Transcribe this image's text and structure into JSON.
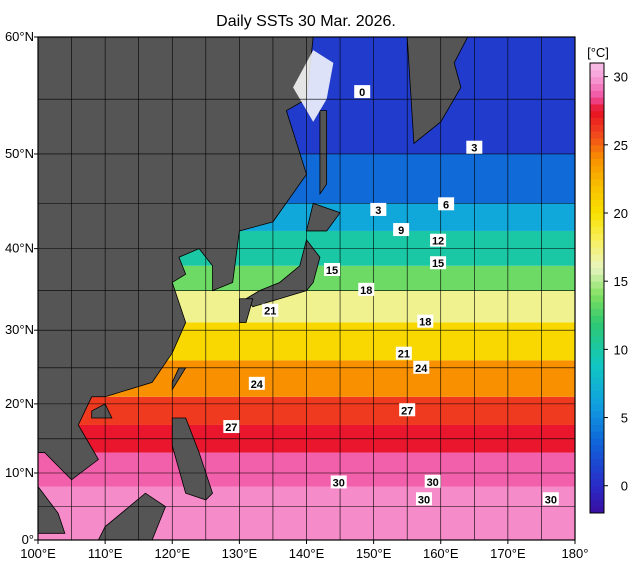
{
  "title": "Daily SSTs 30 Mar. 2026.",
  "map": {
    "lon_range": [
      100,
      180
    ],
    "lat_range": [
      0,
      60
    ],
    "grid_step": 5,
    "lon_ticks": [
      {
        "value": 100,
        "label": "100°E"
      },
      {
        "value": 110,
        "label": "110°E"
      },
      {
        "value": 120,
        "label": "120°E"
      },
      {
        "value": 130,
        "label": "130°E"
      },
      {
        "value": 140,
        "label": "140°E"
      },
      {
        "value": 150,
        "label": "150°E"
      },
      {
        "value": 160,
        "label": "160°E"
      },
      {
        "value": 170,
        "label": "170°E"
      },
      {
        "value": 180,
        "label": "180°"
      }
    ],
    "lat_ticks": [
      {
        "value": 0,
        "label": "0°"
      },
      {
        "value": 10,
        "label": "10°N"
      },
      {
        "value": 20,
        "label": "20°N"
      },
      {
        "value": 30,
        "label": "30°N"
      },
      {
        "value": 40,
        "label": "40°N"
      },
      {
        "value": 50,
        "label": "50°N"
      },
      {
        "value": 60,
        "label": "60°N"
      }
    ]
  },
  "colorbar": {
    "unit": "[°C]",
    "range": [
      -2,
      31
    ],
    "ticks": [
      0,
      5,
      10,
      15,
      20,
      25,
      30
    ]
  },
  "sst_bands": [
    {
      "lat_min": 0,
      "lat_max": 8,
      "sst": 29.6
    },
    {
      "lat_min": 8,
      "lat_max": 13,
      "sst": 28.8
    },
    {
      "lat_min": 13,
      "lat_max": 17,
      "sst": 27.6
    },
    {
      "lat_min": 17,
      "lat_max": 21,
      "sst": 26.2
    },
    {
      "lat_min": 21,
      "lat_max": 26,
      "sst": 24
    },
    {
      "lat_min": 26,
      "lat_max": 31,
      "sst": 20.5
    },
    {
      "lat_min": 31,
      "lat_max": 35,
      "sst": 17
    },
    {
      "lat_min": 35,
      "lat_max": 38,
      "sst": 13.5
    },
    {
      "lat_min": 38,
      "lat_max": 42,
      "sst": 10
    },
    {
      "lat_min": 42,
      "lat_max": 45,
      "sst": 6.5
    },
    {
      "lat_min": 45,
      "lat_max": 50,
      "sst": 3.5
    },
    {
      "lat_min": 50,
      "lat_max": 60,
      "sst": 1
    }
  ],
  "contour_labels": [
    {
      "value": 0,
      "lon": 148.3,
      "lat": 55.6
    },
    {
      "value": 3,
      "lon": 165,
      "lat": 50.6
    },
    {
      "value": 3,
      "lon": 150.7,
      "lat": 44.3
    },
    {
      "value": 6,
      "lon": 160.8,
      "lat": 44.9
    },
    {
      "value": 9,
      "lon": 154.1,
      "lat": 42.1
    },
    {
      "value": 12,
      "lon": 159.6,
      "lat": 40.9
    },
    {
      "value": 15,
      "lon": 143.8,
      "lat": 37.5
    },
    {
      "value": 15,
      "lon": 159.6,
      "lat": 38.3
    },
    {
      "value": 18,
      "lon": 148.9,
      "lat": 35.1
    },
    {
      "value": 18,
      "lon": 157.7,
      "lat": 31.1
    },
    {
      "value": 21,
      "lon": 134.6,
      "lat": 32.5
    },
    {
      "value": 21,
      "lon": 154.5,
      "lat": 26.9
    },
    {
      "value": 24,
      "lon": 157.1,
      "lat": 25
    },
    {
      "value": 24,
      "lon": 132.6,
      "lat": 22.8
    },
    {
      "value": 27,
      "lon": 155,
      "lat": 19.1
    },
    {
      "value": 27,
      "lon": 128.8,
      "lat": 16.7
    },
    {
      "value": 30,
      "lon": 144.8,
      "lat": 8.6
    },
    {
      "value": 30,
      "lon": 158.8,
      "lat": 8.7
    },
    {
      "value": 30,
      "lon": 157.5,
      "lat": 6.1
    },
    {
      "value": 30,
      "lon": 176.4,
      "lat": 6.1
    }
  ]
}
